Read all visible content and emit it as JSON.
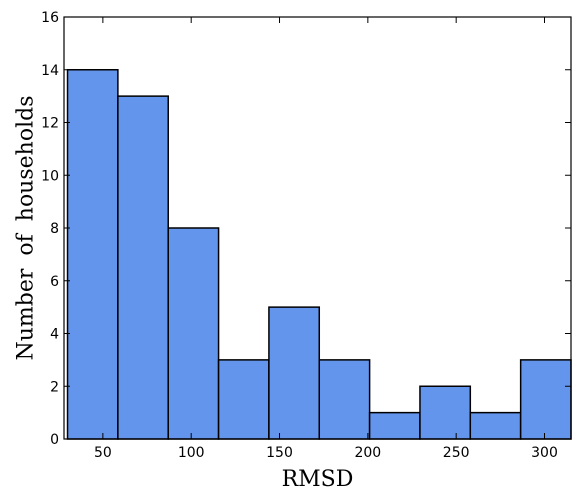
{
  "chart_data": {
    "type": "bar",
    "subtype": "histogram",
    "title": "",
    "xlabel": "RMSD",
    "ylabel": "Number of households",
    "xlim": [
      28,
      315
    ],
    "ylim": [
      0,
      16
    ],
    "xticks": [
      50,
      100,
      150,
      200,
      250,
      300
    ],
    "yticks": [
      0,
      2,
      4,
      6,
      8,
      10,
      12,
      14,
      16
    ],
    "bins": [
      {
        "start": 30.0,
        "end": 58.5,
        "count": 14
      },
      {
        "start": 58.5,
        "end": 87.0,
        "count": 13
      },
      {
        "start": 87.0,
        "end": 115.5,
        "count": 8
      },
      {
        "start": 115.5,
        "end": 144.0,
        "count": 3
      },
      {
        "start": 144.0,
        "end": 172.5,
        "count": 5
      },
      {
        "start": 172.5,
        "end": 201.0,
        "count": 3
      },
      {
        "start": 201.0,
        "end": 229.5,
        "count": 1
      },
      {
        "start": 229.5,
        "end": 258.0,
        "count": 2
      },
      {
        "start": 258.0,
        "end": 286.5,
        "count": 1
      },
      {
        "start": 286.5,
        "end": 315.0,
        "count": 3
      }
    ],
    "bar_color": "#6495ed",
    "edge_color": "#000000",
    "grid": false,
    "legend": "none"
  }
}
